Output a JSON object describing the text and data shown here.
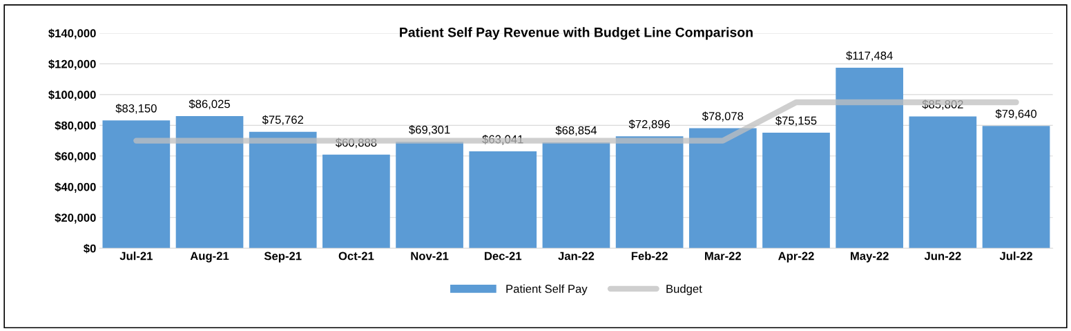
{
  "chart_data": {
    "type": "bar",
    "title": "Patient Self Pay Revenue with Budget Line Comparison",
    "categories": [
      "Jul-21",
      "Aug-21",
      "Sep-21",
      "Oct-21",
      "Nov-21",
      "Dec-21",
      "Jan-22",
      "Feb-22",
      "Mar-22",
      "Apr-22",
      "May-22",
      "Jun-22",
      "Jul-22"
    ],
    "series": [
      {
        "name": "Patient Self Pay",
        "color": "#5b9bd5",
        "values": [
          83150,
          86025,
          75762,
          60888,
          69301,
          63041,
          68854,
          72896,
          78078,
          75155,
          117484,
          85802,
          79640
        ],
        "value_labels": [
          "$83,150",
          "$86,025",
          "$75,762",
          "$60,888",
          "$69,301",
          "$63,041",
          "$68,854",
          "$72,896",
          "$78,078",
          "$75,155",
          "$117,484",
          "$85,802",
          "$79,640"
        ]
      },
      {
        "name": "Budget",
        "type": "line",
        "color": "#bfbfbf",
        "values": [
          70000,
          70000,
          70000,
          70000,
          70000,
          70000,
          70000,
          70000,
          70000,
          95000,
          95000,
          95000,
          95000
        ]
      }
    ],
    "ylim": [
      0,
      140000
    ],
    "yticks": [
      {
        "value": 0,
        "label": "$0"
      },
      {
        "value": 20000,
        "label": "$20,000"
      },
      {
        "value": 40000,
        "label": "$40,000"
      },
      {
        "value": 60000,
        "label": "$60,000"
      },
      {
        "value": 80000,
        "label": "$80,000"
      },
      {
        "value": 100000,
        "label": "$100,000"
      },
      {
        "value": 120000,
        "label": "$120,000"
      },
      {
        "value": 140000,
        "label": "$140,000"
      }
    ],
    "grid": "y",
    "legend": "bottom",
    "line_style": "solid",
    "marker": "none"
  }
}
